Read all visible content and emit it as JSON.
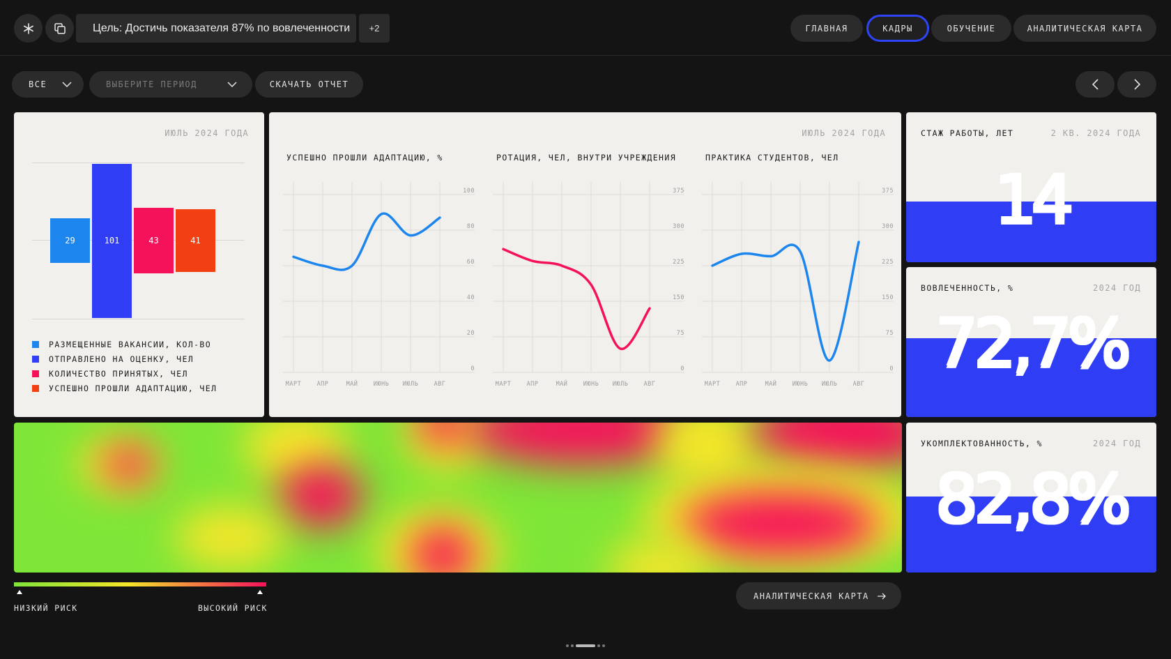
{
  "header": {
    "goal_text": "Цель: Достичь показателя 87% по вовлеченности",
    "goal_more": "+2",
    "tabs": [
      {
        "label": "ГЛАВНАЯ",
        "active": false
      },
      {
        "label": "КАДРЫ",
        "active": true
      },
      {
        "label": "ОБУЧЕНИЕ",
        "active": false
      },
      {
        "label": "АНАЛИТИЧЕСКАЯ КАРТА",
        "active": false
      }
    ]
  },
  "filters": {
    "scope_value": "ВСЕ",
    "period_placeholder": "ВЫБЕРИТЕ ПЕРИОД",
    "download_label": "СКАЧАТЬ ОТЧЕТ"
  },
  "bar_card": {
    "date": "ИЮЛЬ 2024 ГОДА",
    "legend": [
      {
        "label": "РАЗМЕЩЕННЫЕ ВАКАНСИИ, КОЛ-ВО",
        "color": "#1c86ee"
      },
      {
        "label": "ОТПРАВЛЕНО НА ОЦЕНКУ, ЧЕЛ",
        "color": "#2f3df5"
      },
      {
        "label": "КОЛИЧЕСТВО ПРИНЯТЫХ, ЧЕЛ",
        "color": "#f5125a"
      },
      {
        "label": "УСПЕШНО ПРОШЛИ АДАПТАЦИЮ, ЧЕЛ",
        "color": "#f24012"
      }
    ]
  },
  "line_card": {
    "date": "ИЮЛЬ 2024 ГОДА"
  },
  "chart_data": [
    {
      "type": "bar",
      "categories": [
        "РАЗМЕЩЕННЫЕ ВАКАНСИИ, КОЛ-ВО",
        "ОТПРАВЛЕНО НА ОЦЕНКУ, ЧЕЛ",
        "КОЛИЧЕСТВО ПРИНЯТЫХ, ЧЕЛ",
        "УСПЕШНО ПРОШЛИ АДАПТАЦИЮ, ЧЕЛ"
      ],
      "values": [
        29,
        101,
        43,
        41
      ],
      "colors": [
        "#1c86ee",
        "#2f3df5",
        "#f5125a",
        "#f24012"
      ],
      "value_labels": [
        "29",
        "101",
        "43",
        "41"
      ],
      "grid": true,
      "legend": "bottom-left"
    },
    {
      "type": "line",
      "title": "УСПЕШНО ПРОШЛИ АДАПТАЦИЮ, %",
      "x": [
        "МАРТ",
        "АПР",
        "МАЙ",
        "ИЮНЬ",
        "ИЮЛЬ",
        "АВГ"
      ],
      "y": [
        65,
        60,
        60,
        89,
        77,
        87
      ],
      "ylim": [
        0,
        100
      ],
      "yticks": [
        "100",
        "80",
        "60",
        "40",
        "20",
        "0"
      ],
      "color": "#1c86ee",
      "grid": true
    },
    {
      "type": "line",
      "title": "РОТАЦИЯ, ЧЕЛ, ВНУТРИ УЧРЕЖДЕНИЯ",
      "x": [
        "МАРТ",
        "АПР",
        "МАЙ",
        "ИЮНЬ",
        "ИЮЛЬ",
        "АВГ"
      ],
      "y": [
        260,
        235,
        225,
        185,
        50,
        135
      ],
      "ylim": [
        0,
        375
      ],
      "yticks": [
        "375",
        "300",
        "225",
        "150",
        "75",
        "0"
      ],
      "color": "#f5125a",
      "grid": true
    },
    {
      "type": "line",
      "title": "ПРАКТИКА СТУДЕНТОВ, ЧЕЛ",
      "x": [
        "МАРТ",
        "АПР",
        "МАЙ",
        "ИЮНЬ",
        "ИЮЛЬ",
        "АВГ"
      ],
      "y": [
        225,
        250,
        245,
        255,
        25,
        275
      ],
      "ylim": [
        0,
        375
      ],
      "yticks": [
        "375",
        "300",
        "225",
        "150",
        "75",
        "0"
      ],
      "color": "#1c86ee",
      "grid": true
    }
  ],
  "kpis": [
    {
      "label": "СТАЖ РАБОТЫ, ЛЕТ",
      "period": "2 КВ. 2024 ГОДА",
      "value": "14"
    },
    {
      "label": "ВОВЛЕЧЕННОСТЬ, %",
      "period": "2024 ГОД",
      "value": "72,7%"
    },
    {
      "label": "УКОМПЛЕКТОВАННОСТЬ, %",
      "period": "2024 ГОД",
      "value": "82,8%"
    }
  ],
  "risk_scale": {
    "low_label": "НИЗКИЙ РИСК",
    "high_label": "ВЫСОКИЙ РИСК",
    "low_color": "#7ee638",
    "high_color": "#f5125a"
  },
  "analytics_button": {
    "label": "АНАЛИТИЧЕСКАЯ КАРТА",
    "icon": "arrow-right-icon"
  },
  "pager": {
    "icon": "page-indicator-dots"
  }
}
